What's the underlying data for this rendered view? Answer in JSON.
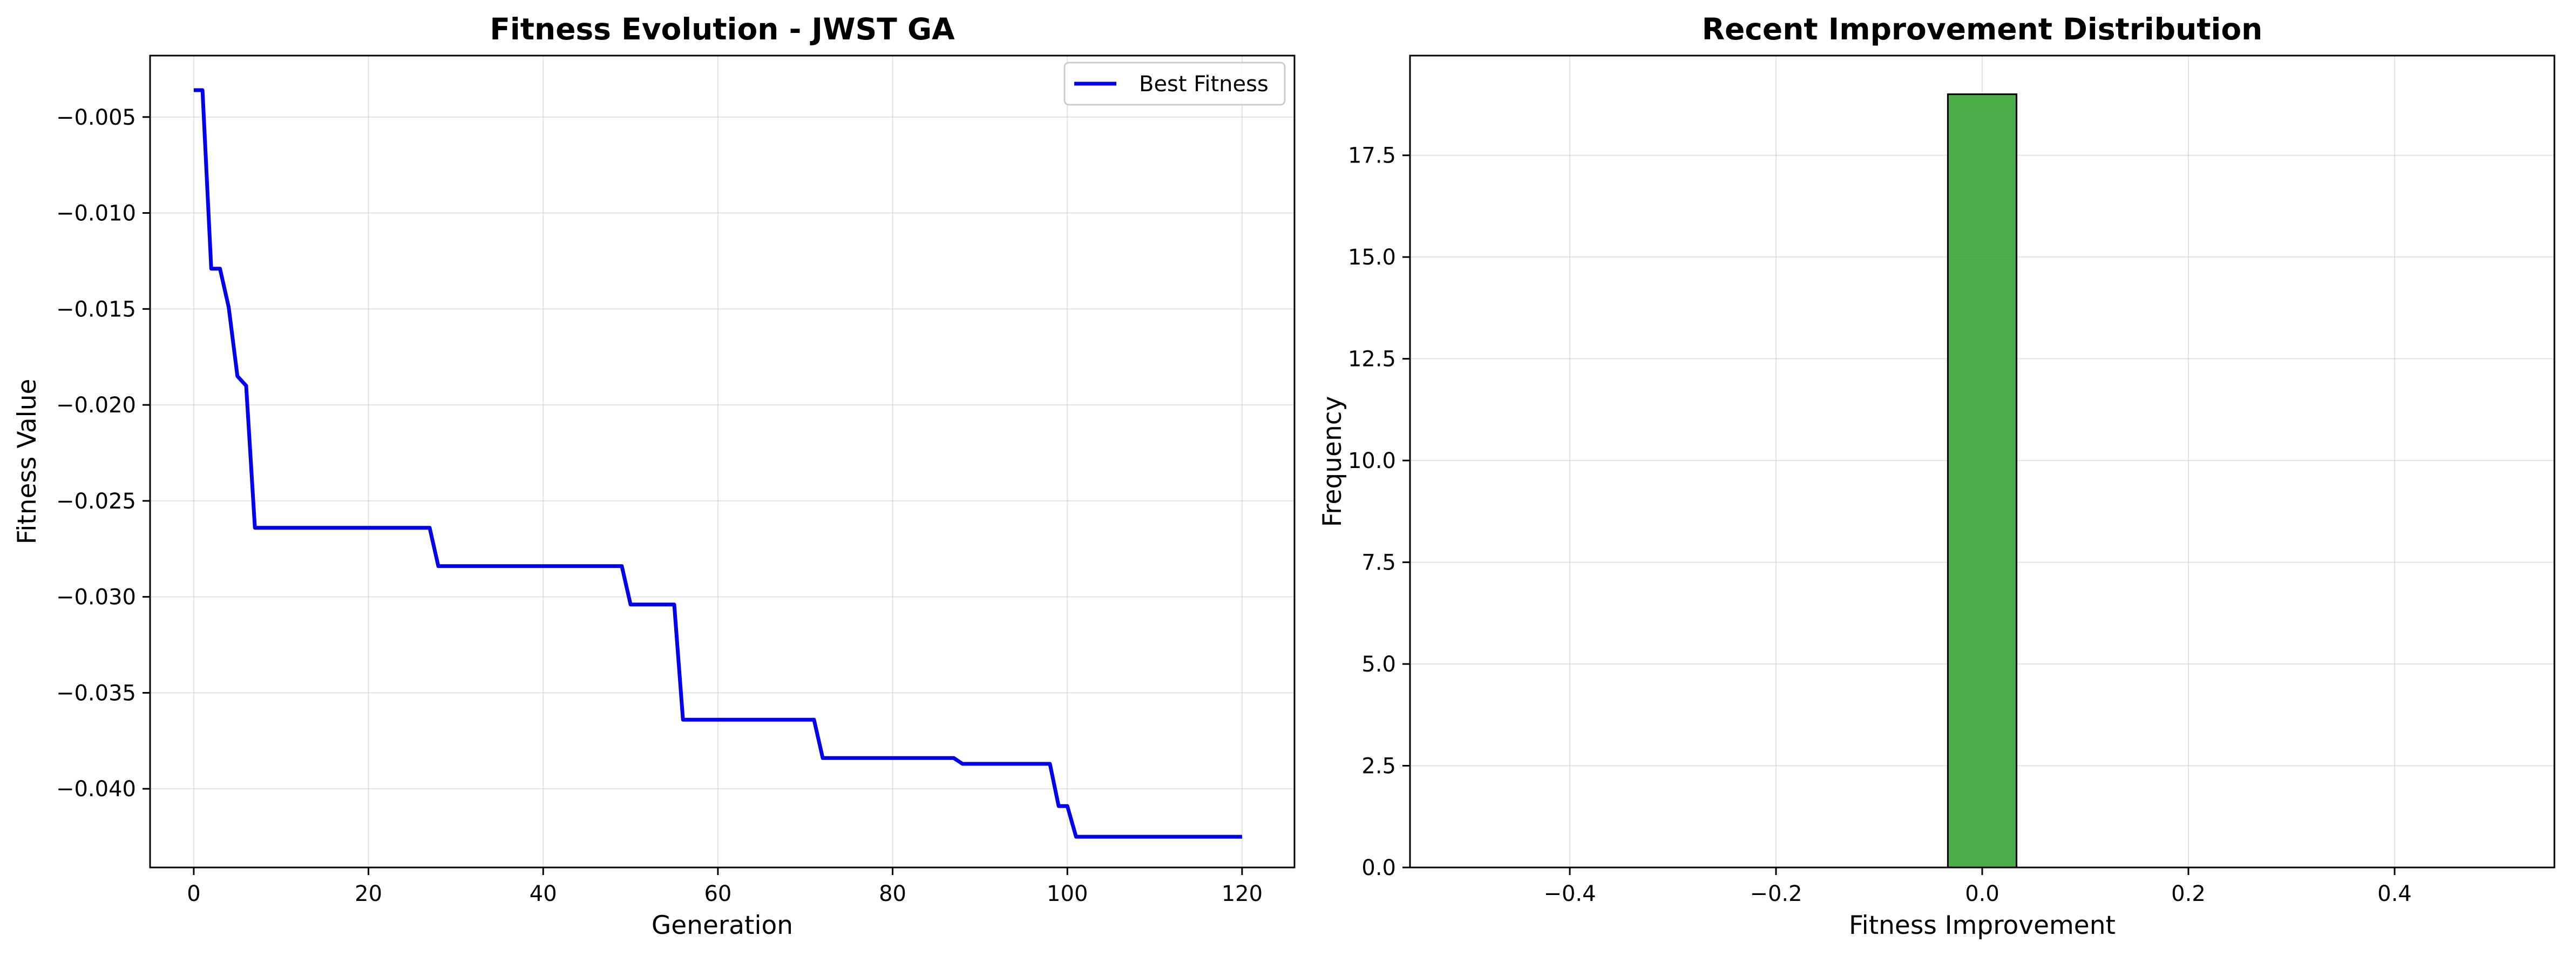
{
  "chart_data": [
    {
      "type": "line",
      "title": "Fitness Evolution - JWST GA",
      "xlabel": "Generation",
      "ylabel": "Fitness Value",
      "xlim": [
        -5,
        126
      ],
      "ylim": [
        -0.0441,
        -0.0018
      ],
      "xticks": [
        0,
        20,
        40,
        60,
        80,
        100,
        120
      ],
      "xtick_labels": [
        "0",
        "20",
        "40",
        "60",
        "80",
        "100",
        "120"
      ],
      "yticks": [
        -0.005,
        -0.01,
        -0.015,
        -0.02,
        -0.025,
        -0.03,
        -0.035,
        -0.04
      ],
      "ytick_labels": [
        "−0.005",
        "−0.010",
        "−0.015",
        "−0.020",
        "−0.025",
        "−0.030",
        "−0.035",
        "−0.040"
      ],
      "grid": true,
      "legend_position": "top-right",
      "series": [
        {
          "name": "Best Fitness",
          "color": "#0000ee",
          "x": [
            0,
            1,
            2,
            3,
            4,
            5,
            6,
            7,
            27,
            28,
            49,
            50,
            55,
            56,
            71,
            72,
            87,
            88,
            98,
            99,
            100,
            101,
            120
          ],
          "y": [
            -0.0036,
            -0.0036,
            -0.0129,
            -0.0129,
            -0.0149,
            -0.0185,
            -0.019,
            -0.0264,
            -0.0264,
            -0.0284,
            -0.0284,
            -0.0304,
            -0.0304,
            -0.0364,
            -0.0364,
            -0.0384,
            -0.0384,
            -0.0387,
            -0.0387,
            -0.0409,
            -0.0409,
            -0.0425,
            -0.0425
          ]
        }
      ]
    },
    {
      "type": "bar",
      "title": "Recent Improvement Distribution",
      "xlabel": "Fitness Improvement",
      "ylabel": "Frequency",
      "xlim": [
        -0.555,
        0.555
      ],
      "ylim": [
        0,
        19.95
      ],
      "xticks": [
        -0.4,
        -0.2,
        0.0,
        0.2,
        0.4
      ],
      "xtick_labels": [
        "−0.4",
        "−0.2",
        "0.0",
        "0.2",
        "0.4"
      ],
      "yticks": [
        0.0,
        2.5,
        5.0,
        7.5,
        10.0,
        12.5,
        15.0,
        17.5
      ],
      "ytick_labels": [
        "0.0",
        "2.5",
        "5.0",
        "7.5",
        "10.0",
        "12.5",
        "15.0",
        "17.5"
      ],
      "grid": true,
      "bar_color": "#2ca02c",
      "edge_color": "#000000",
      "bins": [
        -0.5,
        -0.45,
        -0.4,
        -0.35,
        -0.3,
        -0.25,
        -0.2,
        -0.15,
        -0.1,
        -0.05,
        0.0,
        0.05,
        0.1,
        0.15,
        0.2,
        0.25,
        0.3,
        0.35,
        0.4,
        0.45,
        0.5
      ],
      "bin_edges": [
        -0.5,
        -0.45,
        -0.4,
        -0.35,
        -0.3,
        -0.25,
        -0.2,
        -0.15,
        -0.1,
        -0.0333,
        0.0333,
        0.1,
        0.15,
        0.2,
        0.25,
        0.3,
        0.35,
        0.4,
        0.45,
        0.5
      ],
      "counts": [
        0,
        0,
        0,
        0,
        0,
        0,
        0,
        0,
        0,
        19,
        0,
        0,
        0,
        0,
        0,
        0,
        0,
        0,
        0
      ]
    }
  ]
}
